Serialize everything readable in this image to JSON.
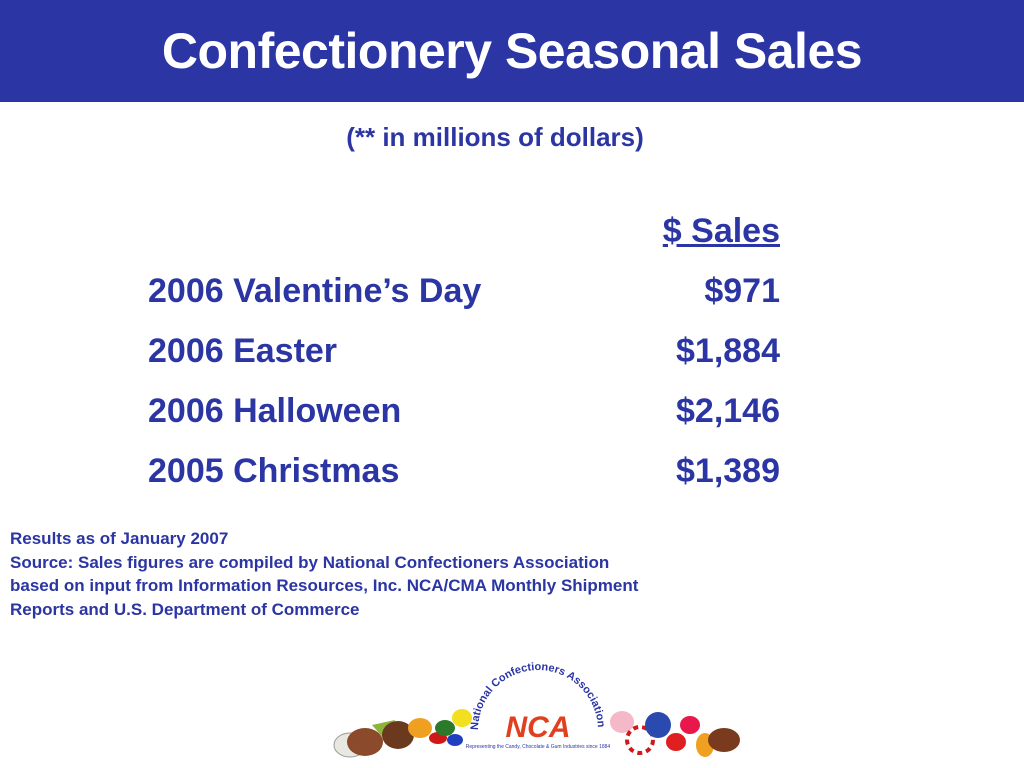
{
  "header": {
    "title": "Confectionery Seasonal Sales"
  },
  "subtitle": "(** in millions of dollars)",
  "table": {
    "column_header": "$ Sales",
    "rows": [
      [
        "2006 Valentine’s Day",
        "$971"
      ],
      [
        "2006 Easter",
        "$1,884"
      ],
      [
        "2006 Halloween",
        "$2,146"
      ],
      [
        "2005 Christmas",
        "$1,389"
      ]
    ]
  },
  "footnote": [
    "Results as of January 2007",
    "Source: Sales figures are compiled by National Confectioners Association",
    "based on input from Information Resources, Inc. NCA/CMA Monthly Shipment",
    "Reports and U.S. Department of Commerce"
  ],
  "logo": {
    "arc_text": "National Confectioners Association",
    "mark": "NCA",
    "tagline": "Representing the Candy, Chocolate & Gum Industries since 1884"
  }
}
